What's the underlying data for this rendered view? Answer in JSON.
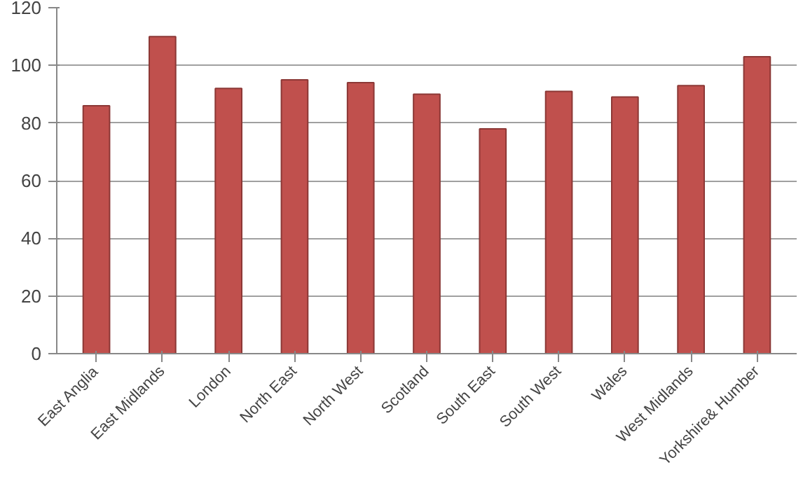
{
  "chart_data": {
    "type": "bar",
    "categories": [
      "East Anglia",
      "East Midlands",
      "London",
      "North East",
      "North West",
      "Scotland",
      "South East",
      "South West",
      "Wales",
      "West Midlands",
      "Yorkshire& Humber"
    ],
    "values": [
      86,
      110,
      92,
      95,
      94,
      90,
      78,
      91,
      89,
      93,
      103
    ],
    "color": "#c0504d",
    "ylim": [
      0,
      120
    ],
    "yticks": [
      0,
      20,
      40,
      60,
      80,
      100,
      120
    ],
    "grid": "y"
  }
}
